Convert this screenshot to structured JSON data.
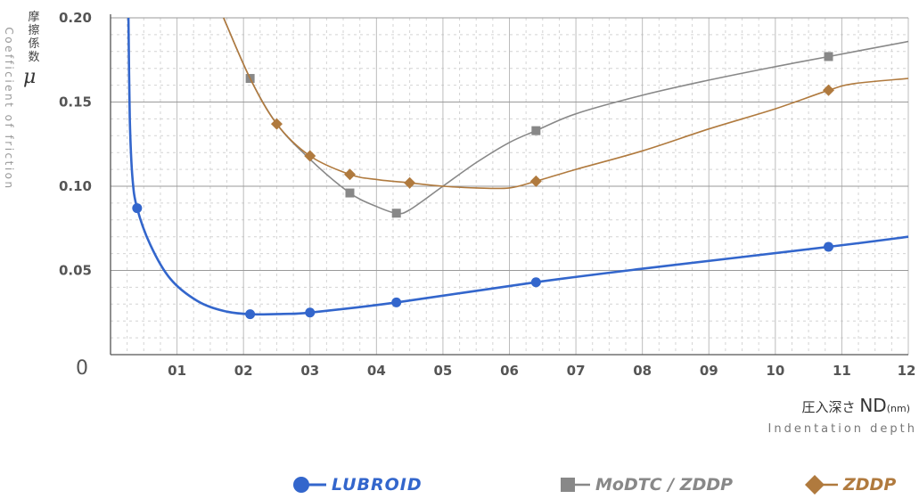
{
  "labels": {
    "y_axis_jp": "摩擦係数",
    "y_axis_symbol": "μ",
    "y_axis_en": "Coefficient of friction",
    "x_axis_jp": "圧入深さ",
    "x_axis_nd": "ND",
    "x_axis_unit": "(nm)",
    "x_axis_en": "Indentation depth"
  },
  "legend": [
    {
      "label": "LUBROID",
      "marker": "circle",
      "color": "#3366cc"
    },
    {
      "label": "MoDTC / ZDDP",
      "marker": "square",
      "color": "#888888"
    },
    {
      "label": "ZDDP",
      "marker": "diamond",
      "color": "#b07a3e"
    }
  ],
  "chart_data": {
    "type": "line",
    "x_ticks": [
      "01",
      "02",
      "03",
      "04",
      "05",
      "06",
      "07",
      "08",
      "09",
      "10",
      "11",
      "12"
    ],
    "y_ticks": [
      "0",
      "0.05",
      "0.10",
      "0.15",
      "0.20"
    ],
    "y_tick_values": [
      0,
      0.05,
      0.1,
      0.15,
      0.2
    ],
    "xlim": [
      0,
      12
    ],
    "ylim": [
      0,
      0.2
    ],
    "grid": true,
    "legend_position": "bottom",
    "series": [
      {
        "name": "LUBROID",
        "color": "#3366cc",
        "marker": "circle",
        "curve": [
          [
            0.27,
            0.2
          ],
          [
            0.29,
            0.14
          ],
          [
            0.33,
            0.105
          ],
          [
            0.4,
            0.087
          ],
          [
            0.6,
            0.065
          ],
          [
            0.9,
            0.045
          ],
          [
            1.3,
            0.032
          ],
          [
            1.7,
            0.026
          ],
          [
            2.1,
            0.024
          ],
          [
            2.6,
            0.0242
          ],
          [
            3.0,
            0.025
          ],
          [
            4.3,
            0.031
          ],
          [
            6.4,
            0.043
          ],
          [
            8.0,
            0.051
          ],
          [
            10.8,
            0.064
          ],
          [
            12.0,
            0.07
          ]
        ],
        "points": [
          [
            0.4,
            0.087
          ],
          [
            2.1,
            0.024
          ],
          [
            3.0,
            0.025
          ],
          [
            4.3,
            0.031
          ],
          [
            6.4,
            0.043
          ],
          [
            10.8,
            0.064
          ]
        ]
      },
      {
        "name": "MoDTC / ZDDP",
        "color": "#888888",
        "marker": "square",
        "curve": [
          [
            1.7,
            0.2
          ],
          [
            2.1,
            0.164
          ],
          [
            2.5,
            0.137
          ],
          [
            3.0,
            0.116
          ],
          [
            3.6,
            0.096
          ],
          [
            4.0,
            0.088
          ],
          [
            4.3,
            0.084
          ],
          [
            4.5,
            0.086
          ],
          [
            5.0,
            0.1
          ],
          [
            5.5,
            0.114
          ],
          [
            6.0,
            0.126
          ],
          [
            6.4,
            0.133
          ],
          [
            7.0,
            0.143
          ],
          [
            8.0,
            0.154
          ],
          [
            9.0,
            0.163
          ],
          [
            10.0,
            0.171
          ],
          [
            10.8,
            0.177
          ],
          [
            12.0,
            0.186
          ]
        ],
        "points": [
          [
            2.1,
            0.164
          ],
          [
            3.6,
            0.096
          ],
          [
            4.3,
            0.084
          ],
          [
            6.4,
            0.133
          ],
          [
            10.8,
            0.177
          ]
        ]
      },
      {
        "name": "ZDDP",
        "color": "#b07a3e",
        "marker": "diamond",
        "curve": [
          [
            1.7,
            0.2
          ],
          [
            2.1,
            0.164
          ],
          [
            2.5,
            0.137
          ],
          [
            3.0,
            0.118
          ],
          [
            3.6,
            0.107
          ],
          [
            4.0,
            0.104
          ],
          [
            4.5,
            0.102
          ],
          [
            5.0,
            0.1
          ],
          [
            5.5,
            0.099
          ],
          [
            6.0,
            0.099
          ],
          [
            6.4,
            0.103
          ],
          [
            7.0,
            0.11
          ],
          [
            8.0,
            0.121
          ],
          [
            9.0,
            0.134
          ],
          [
            10.0,
            0.146
          ],
          [
            10.8,
            0.157
          ],
          [
            11.2,
            0.161
          ],
          [
            12.0,
            0.164
          ]
        ],
        "points": [
          [
            2.5,
            0.137
          ],
          [
            3.0,
            0.118
          ],
          [
            3.6,
            0.107
          ],
          [
            4.5,
            0.102
          ],
          [
            6.4,
            0.103
          ],
          [
            10.8,
            0.157
          ]
        ]
      }
    ]
  }
}
